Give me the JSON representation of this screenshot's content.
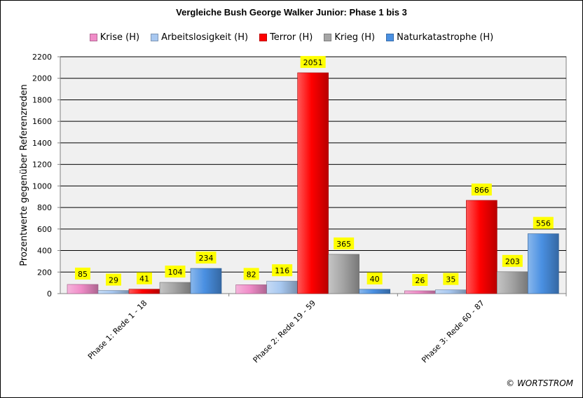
{
  "colors": {
    "plot_background": "#f0f0f0",
    "gridline": "#000000",
    "label_background": "#ffff00",
    "series": [
      "#f08cc8",
      "#a8c8f0",
      "#ff0000",
      "#a6a6a6",
      "#4a90e2"
    ]
  },
  "watermark": {
    "symbol": "©",
    "text": "WORTSTROM"
  },
  "chart_data": {
    "type": "bar",
    "title": "Vergleiche Bush George Walker Junior: Phase 1 bis 3",
    "ylabel": "Prozentwerte  gegenüber Referenzreden",
    "xlabel": "",
    "ylim": [
      0,
      2200
    ],
    "yticks": [
      0,
      200,
      400,
      600,
      800,
      1000,
      1200,
      1400,
      1600,
      1800,
      2000,
      2200
    ],
    "grid": true,
    "legend_position": "top",
    "categories": [
      "Phase 1: Rede 1 - 18",
      "Phase 2: Rede 19 - 59",
      "Phase 3: Rede 60 - 87"
    ],
    "series": [
      {
        "name": "Krise (H)",
        "values": [
          85,
          82,
          26
        ]
      },
      {
        "name": "Arbeitslosigkeit (H)",
        "values": [
          29,
          116,
          35
        ]
      },
      {
        "name": "Terror (H)",
        "values": [
          41,
          2051,
          866
        ]
      },
      {
        "name": "Krieg (H)",
        "values": [
          104,
          365,
          203
        ]
      },
      {
        "name": "Naturkatastrophe (H)",
        "values": [
          234,
          40,
          556
        ]
      }
    ]
  }
}
